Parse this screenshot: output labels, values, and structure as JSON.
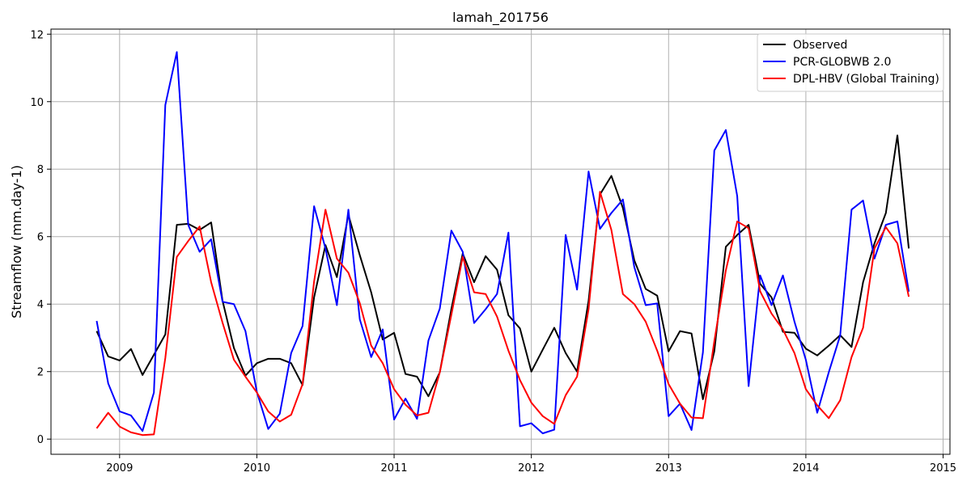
{
  "chart_data": {
    "type": "line",
    "title": "lamah_201756",
    "xlabel": "",
    "ylabel": "Streamflow (mm.day-1)",
    "xlim": [
      2008.5,
      2015.05
    ],
    "ylim": [
      -0.45,
      12.15
    ],
    "x_ticks": [
      2009,
      2010,
      2011,
      2012,
      2013,
      2014,
      2015
    ],
    "y_ticks": [
      0,
      2,
      4,
      6,
      8,
      10,
      12
    ],
    "grid": true,
    "legend_position": "top-right",
    "x": [
      2008.833,
      2008.917,
      2009.0,
      2009.083,
      2009.167,
      2009.25,
      2009.333,
      2009.417,
      2009.5,
      2009.583,
      2009.667,
      2009.75,
      2009.833,
      2009.917,
      2010.0,
      2010.083,
      2010.167,
      2010.25,
      2010.333,
      2010.417,
      2010.5,
      2010.583,
      2010.667,
      2010.75,
      2010.833,
      2010.917,
      2011.0,
      2011.083,
      2011.167,
      2011.25,
      2011.333,
      2011.417,
      2011.5,
      2011.583,
      2011.667,
      2011.75,
      2011.833,
      2011.917,
      2012.0,
      2012.083,
      2012.167,
      2012.25,
      2012.333,
      2012.417,
      2012.5,
      2012.583,
      2012.667,
      2012.75,
      2012.833,
      2012.917,
      2013.0,
      2013.083,
      2013.167,
      2013.25,
      2013.333,
      2013.417,
      2013.5,
      2013.583,
      2013.667,
      2013.75,
      2013.833,
      2013.917,
      2014.0,
      2014.083,
      2014.167,
      2014.25,
      2014.333,
      2014.417,
      2014.5,
      2014.583,
      2014.667,
      2014.75
    ],
    "series": [
      {
        "name": "Observed",
        "color": "#000000",
        "values": [
          3.2,
          2.45,
          2.33,
          2.67,
          1.9,
          2.5,
          3.1,
          6.35,
          6.38,
          6.2,
          6.42,
          4.1,
          2.7,
          1.88,
          2.25,
          2.38,
          2.38,
          2.25,
          1.6,
          4.2,
          5.75,
          4.8,
          6.65,
          5.45,
          4.35,
          2.95,
          3.15,
          1.93,
          1.85,
          1.27,
          1.98,
          3.85,
          5.5,
          4.65,
          5.42,
          5.02,
          3.67,
          3.28,
          2.0,
          2.65,
          3.3,
          2.55,
          2.0,
          4.1,
          7.25,
          7.8,
          6.85,
          5.3,
          4.45,
          4.25,
          2.6,
          3.2,
          3.13,
          1.18,
          2.6,
          5.7,
          6.05,
          6.35,
          4.6,
          4.2,
          3.18,
          3.15,
          2.68,
          2.48,
          2.77,
          3.08,
          2.73,
          4.65,
          5.8,
          6.7,
          9.0,
          5.65
        ]
      },
      {
        "name": "PCR-GLOBWB 2.0",
        "color": "#0000ff",
        "values": [
          3.5,
          1.65,
          0.82,
          0.7,
          0.24,
          1.38,
          9.9,
          11.47,
          6.35,
          5.55,
          5.92,
          4.07,
          4.0,
          3.2,
          1.4,
          0.3,
          0.75,
          2.55,
          3.35,
          6.9,
          5.65,
          3.97,
          6.8,
          3.55,
          2.43,
          3.25,
          0.58,
          1.2,
          0.6,
          2.92,
          3.87,
          6.18,
          5.55,
          3.44,
          3.85,
          4.3,
          6.12,
          0.38,
          0.47,
          0.17,
          0.28,
          6.05,
          4.43,
          7.93,
          6.23,
          6.7,
          7.1,
          5.1,
          3.97,
          4.02,
          0.68,
          1.05,
          0.27,
          2.57,
          8.55,
          9.16,
          7.2,
          1.57,
          4.85,
          3.97,
          4.85,
          3.48,
          2.35,
          0.78,
          1.98,
          3.07,
          6.8,
          7.07,
          5.35,
          6.35,
          6.45,
          4.37
        ]
      },
      {
        "name": "DPL-HBV (Global Training)",
        "color": "#ff0000",
        "values": [
          0.32,
          0.78,
          0.37,
          0.2,
          0.12,
          0.14,
          2.4,
          5.4,
          5.87,
          6.3,
          4.65,
          3.45,
          2.35,
          1.85,
          1.38,
          0.82,
          0.52,
          0.72,
          1.63,
          4.67,
          6.8,
          5.35,
          4.93,
          4.03,
          2.77,
          2.25,
          1.48,
          1.02,
          0.7,
          0.78,
          1.98,
          3.68,
          5.4,
          4.35,
          4.3,
          3.63,
          2.62,
          1.75,
          1.08,
          0.68,
          0.45,
          1.3,
          1.85,
          3.85,
          7.33,
          6.2,
          4.3,
          4.0,
          3.48,
          2.62,
          1.63,
          1.05,
          0.64,
          0.62,
          2.9,
          5.0,
          6.45,
          6.25,
          4.38,
          3.72,
          3.25,
          2.55,
          1.48,
          1.0,
          0.62,
          1.15,
          2.43,
          3.3,
          5.65,
          6.28,
          5.8,
          4.22
        ]
      }
    ]
  }
}
